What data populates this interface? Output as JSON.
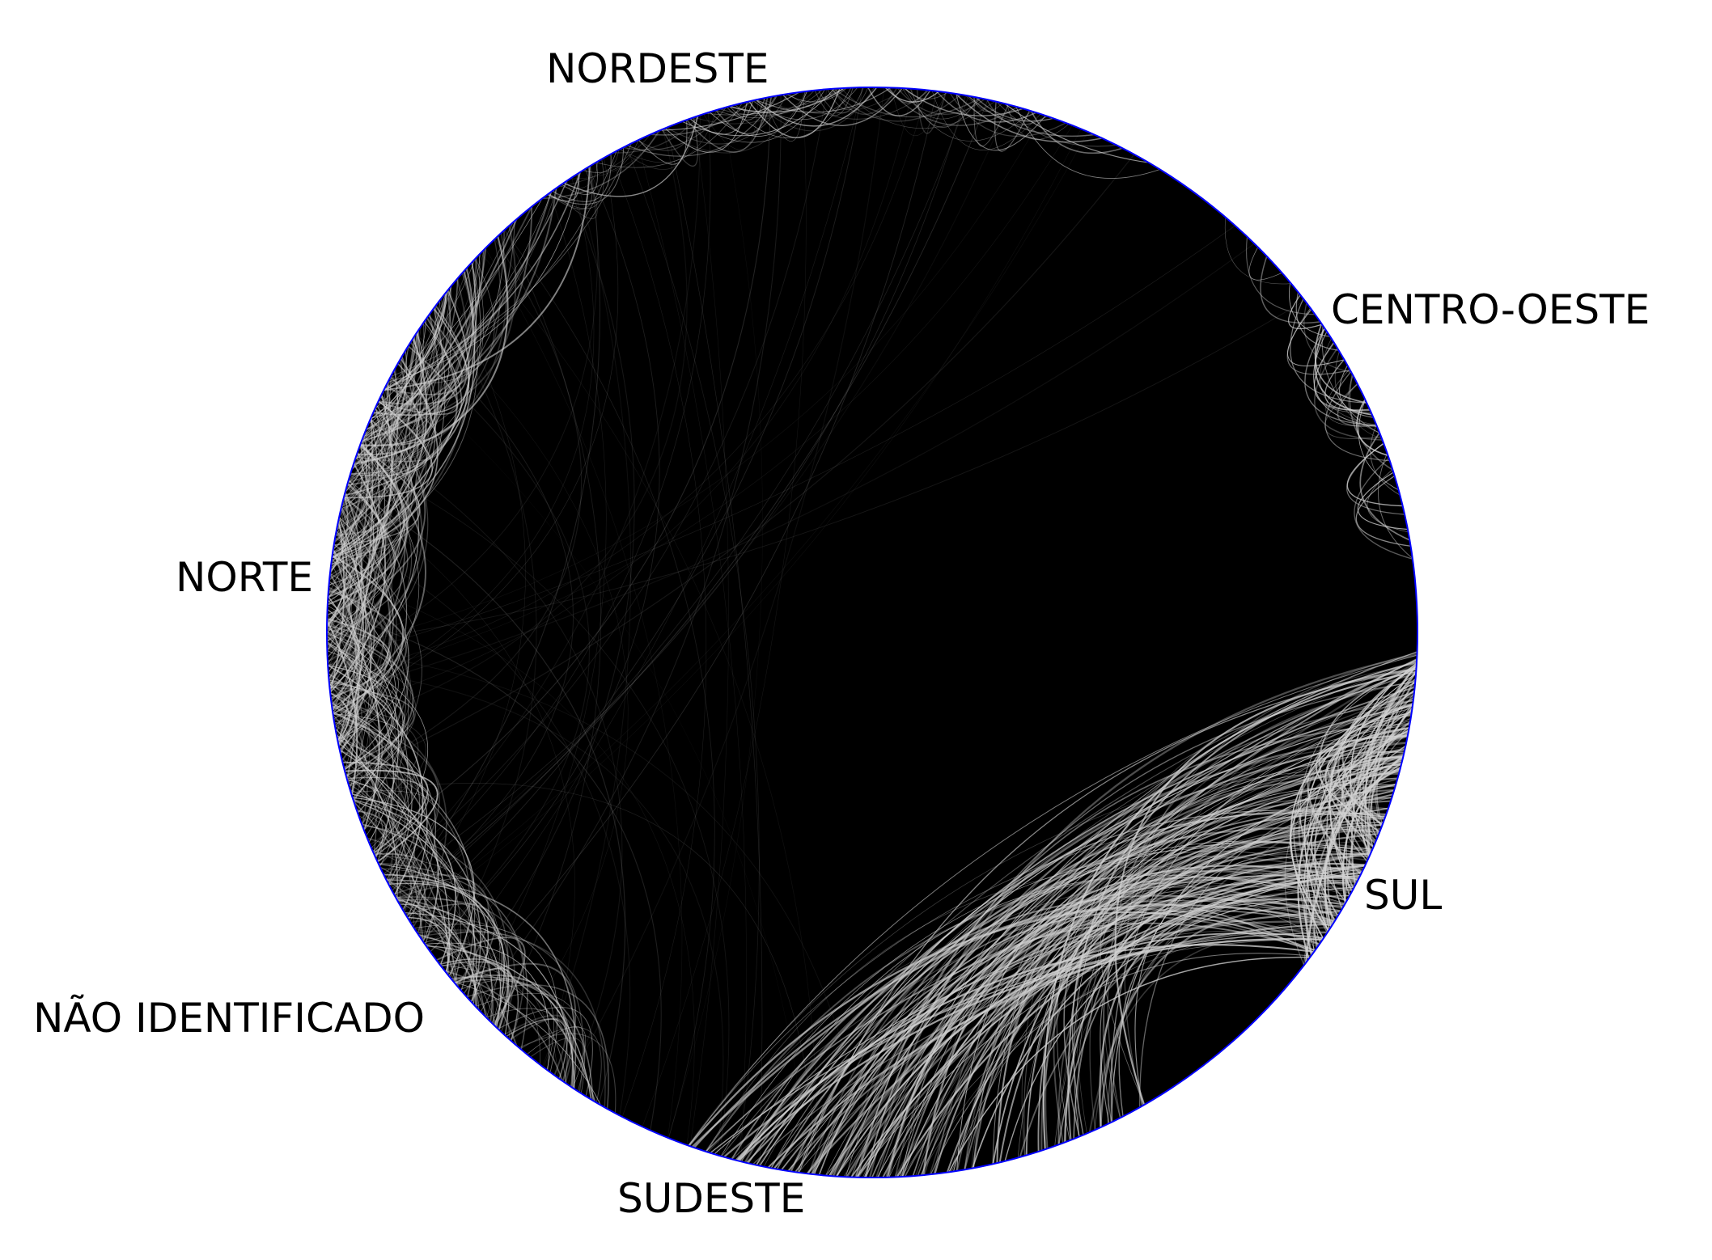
{
  "diagram": {
    "type": "chord",
    "regions": [
      {
        "name": "NORDESTE"
      },
      {
        "name": "CENTRO-OESTE"
      },
      {
        "name": "NORTE"
      },
      {
        "name": "SUL"
      },
      {
        "name": "NÃO IDENTIFICADO"
      },
      {
        "name": "SUDESTE"
      }
    ]
  },
  "colors": {
    "background": "#ffffff",
    "circle_outline": "#0000ff",
    "chord_fill": "#000000",
    "chord_highlight": "#c8c8c8"
  }
}
